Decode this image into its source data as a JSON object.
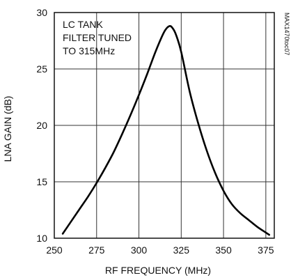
{
  "chart_data": {
    "type": "line",
    "title": "",
    "xlabel": "RF FREQUENCY (MHz)",
    "ylabel": "LNA GAIN (dB)",
    "xlim": [
      250,
      380
    ],
    "ylim": [
      10,
      30
    ],
    "x_ticks": [
      250,
      275,
      300,
      325,
      350,
      375
    ],
    "y_ticks": [
      10,
      15,
      20,
      25,
      30
    ],
    "grid": true,
    "legend": "none",
    "annotation": [
      "LC TANK",
      "FILTER TUNED",
      "TO 315MHz"
    ],
    "figure_code": "MAX1470toc07",
    "series": [
      {
        "name": "",
        "color": "#000000",
        "x": [
          255,
          260,
          265,
          270,
          275,
          280,
          285,
          290,
          295,
          300,
          305,
          310,
          315,
          318,
          320,
          322,
          325,
          330,
          335,
          340,
          345,
          350,
          355,
          360,
          365,
          370,
          375,
          377
        ],
        "y": [
          10.4,
          11.5,
          12.6,
          13.7,
          14.9,
          16.2,
          17.6,
          19.2,
          20.9,
          22.7,
          24.6,
          26.6,
          28.3,
          28.8,
          28.6,
          28.0,
          26.5,
          23.0,
          20.2,
          17.8,
          15.8,
          14.2,
          13.0,
          12.2,
          11.6,
          11.0,
          10.5,
          10.3
        ]
      }
    ]
  }
}
